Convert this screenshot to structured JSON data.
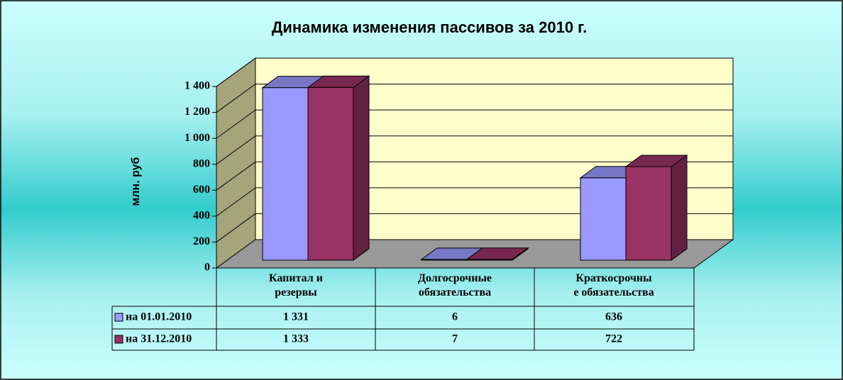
{
  "chart_data": {
    "type": "bar3d",
    "title": "Динамика изменения пассивов за 2010 г.",
    "y_label": "млн. руб",
    "categories": [
      "Капитал и\nрезервы",
      "Долгосрочные\nобязательства",
      "Краткосрочны\nе обязательства"
    ],
    "series": [
      {
        "name": "на 01.01.2010",
        "color": "#9999ff",
        "values": [
          1331,
          6,
          636
        ],
        "value_labels": [
          "1 331",
          "6",
          "636"
        ]
      },
      {
        "name": "на 31.12.2010",
        "color": "#993366",
        "values": [
          1333,
          7,
          722
        ],
        "value_labels": [
          "1 333",
          "7",
          "722"
        ]
      }
    ],
    "ylim": [
      0,
      1400
    ],
    "yticks": [
      0,
      200,
      400,
      600,
      800,
      {
        "value": 1000,
        "label": "1 000"
      },
      {
        "value": 1200,
        "label": "1 200"
      },
      {
        "value": 1400,
        "label": "1 400"
      }
    ],
    "grid": true
  }
}
